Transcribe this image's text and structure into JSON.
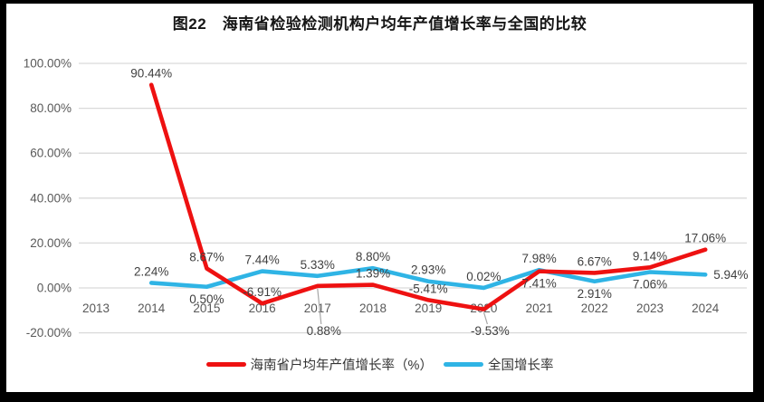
{
  "chart_data": {
    "type": "line",
    "title": "图22　海南省检验检测机构户均年产值增长率与全国的比较",
    "categories": [
      "2013",
      "2014",
      "2015",
      "2016",
      "2017",
      "2018",
      "2019",
      "2020",
      "2021",
      "2022",
      "2023",
      "2024"
    ],
    "series": [
      {
        "name": "海南省户均年产值增长率（%）",
        "color": "#ee1111",
        "values": [
          null,
          90.44,
          8.67,
          -6.91,
          0.88,
          1.39,
          -5.41,
          -9.53,
          7.41,
          6.67,
          9.14,
          17.06
        ],
        "point_labels": [
          null,
          "90.44%",
          "8.67%",
          "-6.91%",
          "0.88%",
          "1.39%",
          "-5.41%",
          "-9.53%",
          "7.41%",
          "6.67%",
          "9.14%",
          "17.06%"
        ],
        "label_pos": [
          null,
          "above",
          "above",
          "above",
          "callout-below",
          "above",
          "above",
          "callout-below",
          "below",
          "above",
          "above",
          "above"
        ]
      },
      {
        "name": "全国增长率",
        "color": "#2fb4e5",
        "values": [
          null,
          2.24,
          0.5,
          7.44,
          5.33,
          8.8,
          2.93,
          0.02,
          7.98,
          2.91,
          7.06,
          5.94
        ],
        "point_labels": [
          null,
          "2.24%",
          "0.50%",
          "7.44%",
          "5.33%",
          "8.80%",
          "2.93%",
          "0.02%",
          "7.98%",
          "2.91%",
          "7.06%",
          "5.94%"
        ],
        "label_pos": [
          null,
          "above",
          "below",
          "above",
          "above",
          "above",
          "above",
          "above",
          "above",
          "below",
          "below",
          "right"
        ]
      }
    ],
    "y_axis": {
      "min": -20,
      "max": 100,
      "tick_step": 20,
      "tick_labels": [
        "100.00%",
        "80.00%",
        "60.00%",
        "40.00%",
        "20.00%",
        "0.00%",
        "-20.00%"
      ]
    },
    "x_axis": {
      "label": ""
    },
    "grid": true,
    "legend_position": "bottom",
    "colors": {
      "gridline": "#d9d9d9",
      "tick_text": "#595959",
      "label_text": "#404040",
      "leader_line": "#a6a6a6",
      "frame": "#000000",
      "background": "#ffffff"
    }
  }
}
